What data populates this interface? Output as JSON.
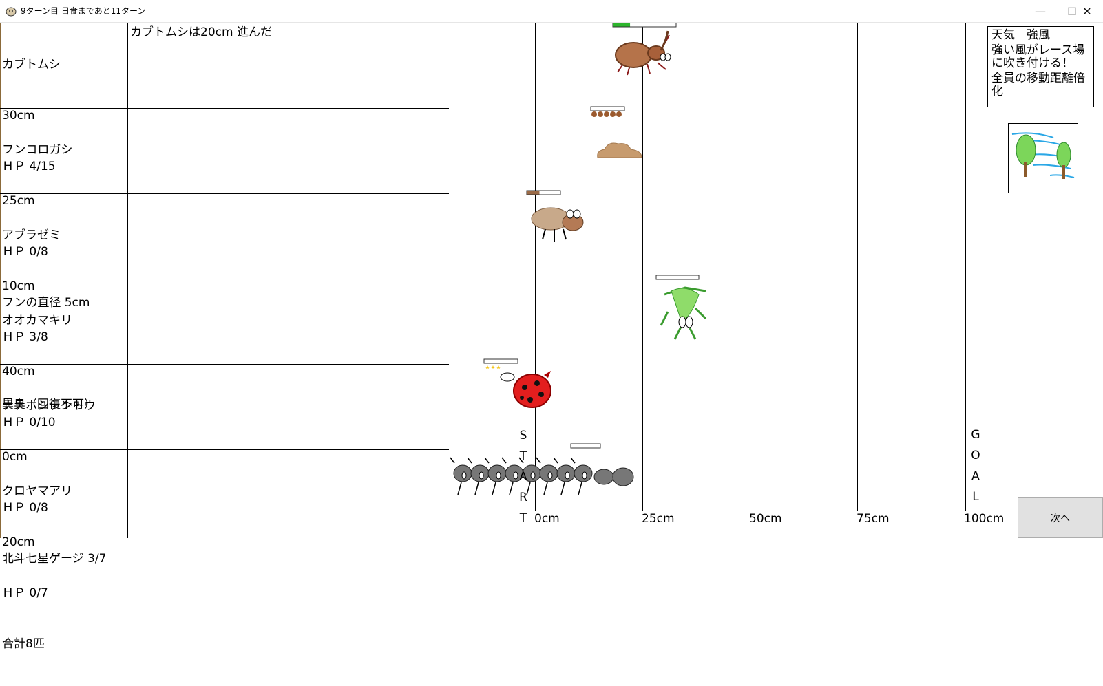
{
  "window": {
    "title": "9ターン目 日食まであと11ターン",
    "controls": {
      "minimize": "—",
      "maximize": "☐",
      "close": "✕"
    }
  },
  "rows": [
    {
      "name": "カブトムシ",
      "position": "30cm",
      "hp": "ＨＰ 4/15",
      "extra": "",
      "hp_fraction": 0.27,
      "hp_color": "#2db52d"
    },
    {
      "name": "フンコロガシ",
      "position": "25cm",
      "hp": "ＨＰ 0/8",
      "extra": "フンの直径 5cm",
      "hp_fraction": 0,
      "hp_color": "#2db52d"
    },
    {
      "name": "アブラゼミ",
      "position": "10cm",
      "hp": "ＨＰ 3/8",
      "extra": "異臭（回復不可）",
      "hp_fraction": 0.375,
      "hp_color": "#9b6b48"
    },
    {
      "name": "オオカマキリ",
      "position": "40cm",
      "hp": "ＨＰ 0/10",
      "extra": "",
      "hp_fraction": 0,
      "hp_color": "#2db52d"
    },
    {
      "name": "ナナホシテントウ",
      "position": "0cm",
      "hp": "ＨＰ 0/8",
      "extra": "北斗七星ゲージ 3/7",
      "hp_fraction": 0,
      "hp_color": "#2db52d"
    },
    {
      "name": "クロヤマアリ",
      "position": "20cm",
      "hp": "ＨＰ 0/7",
      "extra": "合計8匹",
      "hp_fraction": 0,
      "hp_color": "#2db52d"
    }
  ],
  "log": {
    "message": "カブトムシは20cm 進んだ"
  },
  "weather": {
    "title": "天気　強風",
    "description": "強い風がレース場に吹き付ける！",
    "effect": "全員の移動距離倍化"
  },
  "track": {
    "ticks": [
      "0cm",
      "25cm",
      "50cm",
      "75cm",
      "100cm"
    ],
    "start_letters": [
      "S",
      "T",
      "A",
      "R",
      "T"
    ],
    "goal_letters": [
      "G",
      "O",
      "A",
      "L"
    ]
  },
  "next_button": {
    "label": "次へ"
  },
  "colors": {
    "line": "#000000",
    "button_bg": "#e1e1e1",
    "hp_green": "#2db52d"
  }
}
